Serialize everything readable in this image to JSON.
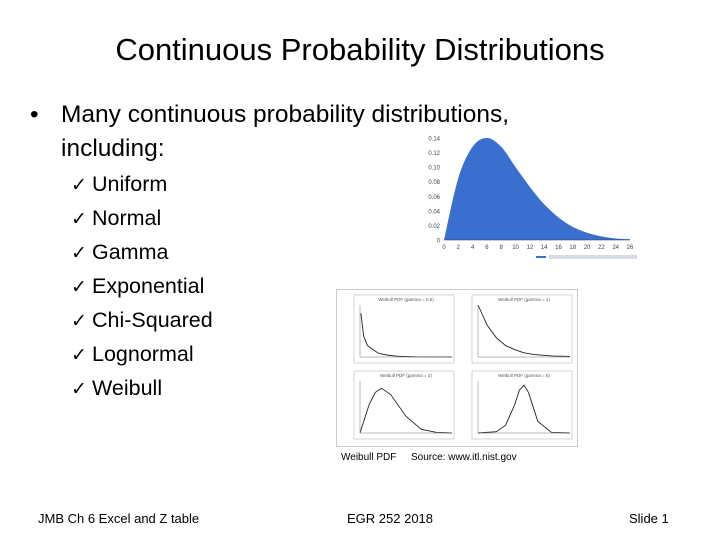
{
  "slide": {
    "title": "Continuous Probability Distributions",
    "bullet": {
      "marker": "•",
      "text": "Many continuous probability distributions, including:"
    },
    "items": [
      {
        "check": "✓",
        "label": "Uniform"
      },
      {
        "check": "✓",
        "label": "Normal"
      },
      {
        "check": "✓",
        "label": "Gamma"
      },
      {
        "check": "✓",
        "label": "Exponential"
      },
      {
        "check": "✓",
        "label": "Chi-Squared"
      },
      {
        "check": "✓",
        "label": "Lognormal"
      },
      {
        "check": "✓",
        "label": "Weibull"
      }
    ],
    "weibull_caption": "Weibull PDF",
    "source_caption": "Source: www.itl.nist.gov",
    "footer": {
      "left": "JMB Ch 6 Excel and Z table",
      "center": "EGR 252 2018",
      "right": "Slide  1"
    }
  },
  "colors": {
    "background": "#ffffff",
    "text": "#000000",
    "curve_fill": "#3a6fd0",
    "axis": "#333333"
  },
  "chart_data": [
    {
      "type": "area",
      "x": [
        0,
        2,
        4,
        6,
        8,
        10,
        12,
        14,
        16,
        18,
        20,
        22,
        24,
        26
      ],
      "y": [
        0,
        0.085,
        0.128,
        0.14,
        0.128,
        0.1,
        0.073,
        0.049,
        0.031,
        0.018,
        0.01,
        0.005,
        0.002,
        0.001
      ],
      "yticks": [
        "0",
        "0.02",
        "0.04",
        "0.06",
        "0.08",
        "0.10",
        "0.12",
        "0.14"
      ],
      "xticks": [
        "0",
        "2",
        "4",
        "6",
        "8",
        "10",
        "12",
        "14",
        "16",
        "18",
        "20",
        "22",
        "24",
        "26"
      ],
      "ylim": [
        0,
        0.14
      ],
      "xlim": [
        0,
        26
      ],
      "legend_position": "bottom-right"
    },
    {
      "type": "line",
      "panels": [
        {
          "title": "Weibull PDF (gamma = 0.5)",
          "x": [
            0.05,
            0.2,
            0.4,
            0.6,
            1.0,
            1.5,
            2,
            3,
            4,
            5
          ],
          "y": [
            2.1,
            1.0,
            0.56,
            0.42,
            0.18,
            0.09,
            0.04,
            0.01,
            0.003,
            0.001
          ],
          "ylim": [
            0,
            2.5
          ],
          "xlim": [
            0,
            5
          ]
        },
        {
          "title": "Weibull PDF (gamma = 1)",
          "x": [
            0,
            0.5,
            1,
            1.5,
            2,
            2.5,
            3,
            4,
            5
          ],
          "y": [
            1.0,
            0.61,
            0.37,
            0.22,
            0.14,
            0.08,
            0.05,
            0.02,
            0.01
          ],
          "ylim": [
            0,
            1
          ],
          "xlim": [
            0,
            5
          ]
        },
        {
          "title": "Weibull PDF (gamma = 2)",
          "x": [
            0,
            0.3,
            0.5,
            0.7,
            1.0,
            1.5,
            2,
            2.5,
            3
          ],
          "y": [
            0,
            0.55,
            0.78,
            0.86,
            0.74,
            0.32,
            0.07,
            0.01,
            0.0
          ],
          "ylim": [
            0,
            1
          ],
          "xlim": [
            0,
            3
          ]
        },
        {
          "title": "Weibull PDF (gamma = 5)",
          "x": [
            0,
            0.4,
            0.6,
            0.8,
            0.9,
            1.0,
            1.1,
            1.3,
            1.6,
            2
          ],
          "y": [
            0,
            0.05,
            0.3,
            1.1,
            1.65,
            1.84,
            1.55,
            0.45,
            0.02,
            0.0
          ],
          "ylim": [
            0,
            2
          ],
          "xlim": [
            0,
            2
          ]
        }
      ]
    }
  ]
}
